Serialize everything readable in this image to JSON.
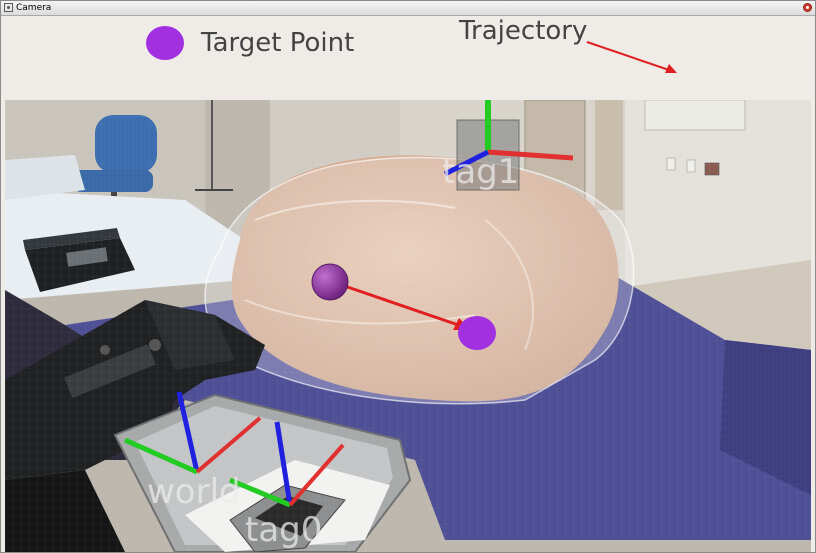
{
  "window": {
    "title": "Camera"
  },
  "legend": {
    "target_point_label": "Target Point",
    "trajectory_label": "Trajectory",
    "target_color": "#a22fe0",
    "trajectory_color": "#e02020"
  },
  "scene": {
    "tag_top_label": "tag1",
    "world_label": "world",
    "tag_bottom_label": "tag0",
    "axis_colors": {
      "x": "#e03030",
      "y": "#22cc22",
      "z": "#2020e0"
    }
  }
}
